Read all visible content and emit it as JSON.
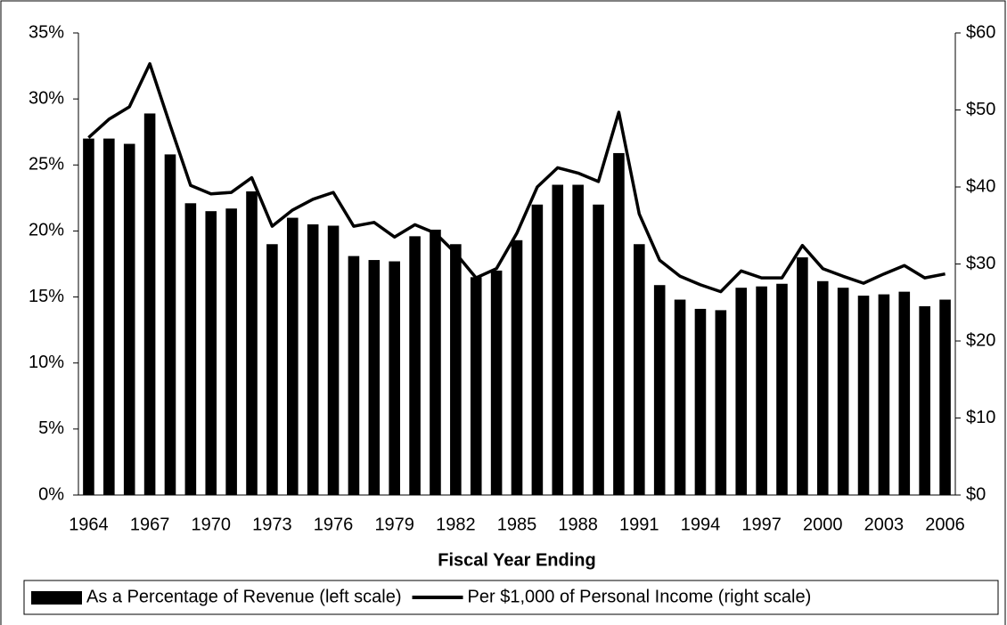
{
  "chart_data": {
    "type": "combo",
    "xlabel": "Fiscal Year Ending",
    "categories": [
      "1964",
      null,
      null,
      "1967",
      null,
      null,
      "1970",
      null,
      null,
      "1973",
      null,
      null,
      "1976",
      null,
      null,
      "1979",
      null,
      null,
      "1982",
      null,
      null,
      "1985",
      null,
      null,
      "1988",
      null,
      null,
      "1991",
      null,
      null,
      "1994",
      null,
      null,
      "1997",
      null,
      null,
      "2000",
      null,
      null,
      "2003",
      null,
      null,
      "2006"
    ],
    "series": [
      {
        "name": "As a Percentage of Revenue (left scale)",
        "type": "bar",
        "color": "#000000",
        "values": [
          27.0,
          27.0,
          26.6,
          28.9,
          25.8,
          22.1,
          21.5,
          21.7,
          23.0,
          19.0,
          21.0,
          20.5,
          20.4,
          18.1,
          17.8,
          17.7,
          19.6,
          20.1,
          19.0,
          16.5,
          17.0,
          19.3,
          22.0,
          23.5,
          23.5,
          22.0,
          25.9,
          19.0,
          15.9,
          14.8,
          14.1,
          14.0,
          15.7,
          15.8,
          16.0,
          18.0,
          16.2,
          15.7,
          15.1,
          15.2,
          15.4,
          14.3,
          14.8
        ]
      },
      {
        "name": "Per $1,000 of Personal Income (right scale)",
        "type": "line",
        "axis": "y2",
        "color": "#000000",
        "values": [
          46.4,
          48.8,
          50.4,
          56.0,
          48.0,
          40.2,
          39.1,
          39.3,
          41.2,
          34.9,
          37.0,
          38.4,
          39.3,
          34.9,
          35.4,
          33.5,
          35.1,
          34.0,
          31.4,
          28.2,
          29.4,
          34.0,
          40.0,
          42.5,
          41.8,
          40.7,
          49.7,
          36.5,
          30.5,
          28.4,
          27.3,
          26.4,
          29.1,
          28.2,
          28.2,
          32.4,
          29.4,
          28.4,
          27.5,
          28.7,
          29.8,
          28.2,
          28.7
        ]
      }
    ],
    "ylim": [
      0,
      35
    ],
    "yticks": [
      {
        "value": 0,
        "label": "0%"
      },
      {
        "value": 5,
        "label": "5%"
      },
      {
        "value": 10,
        "label": "10%"
      },
      {
        "value": 15,
        "label": "15%"
      },
      {
        "value": 20,
        "label": "20%"
      },
      {
        "value": 25,
        "label": "25%"
      },
      {
        "value": 30,
        "label": "30%"
      },
      {
        "value": 35,
        "label": "35%"
      }
    ],
    "y2lim": [
      0,
      60
    ],
    "y2ticks": [
      {
        "value": 0,
        "label": "$0"
      },
      {
        "value": 10,
        "label": "$10"
      },
      {
        "value": 20,
        "label": "$20"
      },
      {
        "value": 30,
        "label": "$30"
      },
      {
        "value": 40,
        "label": "$40"
      },
      {
        "value": 50,
        "label": "$50"
      },
      {
        "value": 60,
        "label": "$60"
      }
    ],
    "legend": "bottom"
  }
}
